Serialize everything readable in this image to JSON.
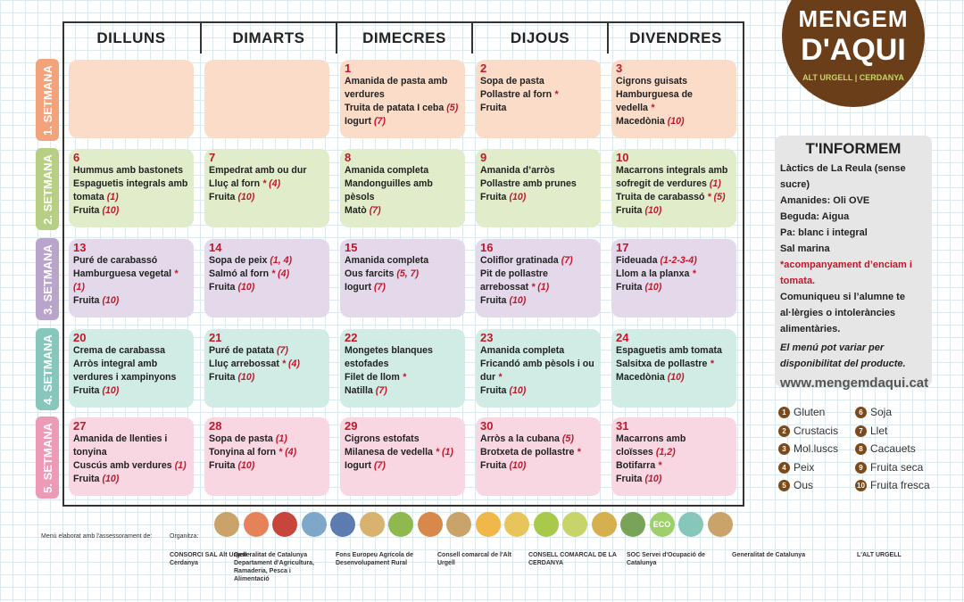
{
  "days": [
    "DILLUNS",
    "DIMARTS",
    "DIMECRES",
    "DIJOUS",
    "DIVENDRES"
  ],
  "weeks": [
    "1. SETMANA",
    "2. SETMANA",
    "3. SETMANA",
    "4. SETMANA",
    "5. SETMANA"
  ],
  "cells": [
    [
      null,
      null,
      {
        "date": 1,
        "items": [
          {
            "text": "Amanida de pasta amb verdures"
          },
          {
            "text": "Truita de patata I ceba",
            "note": "(5)"
          },
          {
            "text": "Iogurt",
            "note": "(7)"
          }
        ]
      },
      {
        "date": 2,
        "items": [
          {
            "text": "Sopa de pasta"
          },
          {
            "text": "Pollastre al forn",
            "note": "*"
          },
          {
            "text": "Fruita"
          }
        ]
      },
      {
        "date": 3,
        "items": [
          {
            "text": "Cigrons guisats"
          },
          {
            "text": "Hamburguesa de vedella",
            "note": "*"
          },
          {
            "text": "Macedònia",
            "note": "(10)"
          }
        ]
      }
    ],
    [
      {
        "date": 6,
        "items": [
          {
            "text": "Hummus amb bastonets"
          },
          {
            "text": "Espaguetis integrals amb tomata",
            "note": "(1)"
          },
          {
            "text": "Fruita",
            "note": "(10)"
          }
        ]
      },
      {
        "date": 7,
        "items": [
          {
            "text": "Empedrat amb ou dur"
          },
          {
            "text": "Lluç al forn",
            "note": "* (4)"
          },
          {
            "text": "Fruita",
            "note": "(10)"
          }
        ]
      },
      {
        "date": 8,
        "items": [
          {
            "text": "Amanida completa"
          },
          {
            "text": "Mandonguilles amb pèsols"
          },
          {
            "text": "Matò",
            "note": "(7)"
          }
        ]
      },
      {
        "date": 9,
        "items": [
          {
            "text": "Amanida d’arròs"
          },
          {
            "text": "Pollastre amb prunes"
          },
          {
            "text": "Fruita",
            "note": "(10)"
          }
        ]
      },
      {
        "date": 10,
        "items": [
          {
            "text": "Macarrons integrals amb sofregit de verdures",
            "note": "(1)"
          },
          {
            "text": "Truita de carabassó",
            "note": "* (5)"
          },
          {
            "text": "Fruita",
            "note": "(10)"
          }
        ]
      }
    ],
    [
      {
        "date": 13,
        "items": [
          {
            "text": "Puré de carabassó"
          },
          {
            "text": "Hamburguesa vegetal",
            "note": "* (1)"
          },
          {
            "text": "Fruita",
            "note": "(10)"
          }
        ]
      },
      {
        "date": 14,
        "items": [
          {
            "text": "Sopa de peix",
            "note": "(1, 4)"
          },
          {
            "text": "Salmó al forn",
            "note": "* (4)"
          },
          {
            "text": "Fruita",
            "note": "(10)"
          }
        ]
      },
      {
        "date": 15,
        "items": [
          {
            "text": "Amanida completa"
          },
          {
            "text": "Ous farcits",
            "note": "(5, 7)"
          },
          {
            "text": "Iogurt",
            "note": "(7)"
          }
        ]
      },
      {
        "date": 16,
        "items": [
          {
            "text": "Coliflor gratinada",
            "note": "(7)"
          },
          {
            "text": "Pit de pollastre arrebossat",
            "note": "* (1)"
          },
          {
            "text": "Fruita",
            "note": "(10)"
          }
        ]
      },
      {
        "date": 17,
        "items": [
          {
            "text": "Fideuada",
            "note": "(1-2-3-4)"
          },
          {
            "text": "Llom a la planxa",
            "note": "*"
          },
          {
            "text": "Fruita",
            "note": "(10)"
          }
        ]
      }
    ],
    [
      {
        "date": 20,
        "items": [
          {
            "text": "Crema de carabassa"
          },
          {
            "text": "Arròs integral amb verdures i xampinyons"
          },
          {
            "text": "Fruita",
            "note": "(10)"
          }
        ]
      },
      {
        "date": 21,
        "items": [
          {
            "text": "Puré de patata",
            "note": "(7)"
          },
          {
            "text": "Lluç arrebossat",
            "note": "* (4)"
          },
          {
            "text": "Fruita",
            "note": "(10)"
          }
        ]
      },
      {
        "date": 22,
        "items": [
          {
            "text": "Mongetes blanques estofades"
          },
          {
            "text": "Filet de llom",
            "note": "*"
          },
          {
            "text": "Natilla",
            "note": "(7)"
          }
        ]
      },
      {
        "date": 23,
        "items": [
          {
            "text": "Amanida completa"
          },
          {
            "text": "Fricandó amb pèsols i ou dur",
            "note": "*"
          },
          {
            "text": "Fruita",
            "note": "(10)"
          }
        ]
      },
      {
        "date": 24,
        "items": [
          {
            "text": "Espaguetis amb tomata"
          },
          {
            "text": "Salsitxa de pollastre",
            "note": "*"
          },
          {
            "text": "Macedònia",
            "note": "(10)"
          }
        ]
      }
    ],
    [
      {
        "date": 27,
        "items": [
          {
            "text": "Amanida de llenties i tonyina"
          },
          {
            "text": "Cuscús amb verdures",
            "note": "(1)"
          },
          {
            "text": "Fruita",
            "note": "(10)"
          }
        ]
      },
      {
        "date": 28,
        "items": [
          {
            "text": "Sopa de pasta",
            "note": "(1)"
          },
          {
            "text": "Tonyina al forn",
            "note": "* (4)"
          },
          {
            "text": "Fruita",
            "note": "(10)"
          }
        ]
      },
      {
        "date": 29,
        "items": [
          {
            "text": "Cigrons estofats"
          },
          {
            "text": "Milanesa de vedella",
            "note": "* (1)"
          },
          {
            "text": "Iogurt",
            "note": "(7)"
          }
        ]
      },
      {
        "date": 30,
        "items": [
          {
            "text": "Arròs a la cubana",
            "note": "(5)"
          },
          {
            "text": "Brotxeta de pollastre",
            "note": "*"
          },
          {
            "text": "Fruita",
            "note": "(10)"
          }
        ]
      },
      {
        "date": 31,
        "items": [
          {
            "text": "Macarrons amb cloïsses",
            "note": "(1,2)"
          },
          {
            "text": "Botifarra",
            "note": "*"
          },
          {
            "text": "Fruita",
            "note": "(10)"
          }
        ]
      }
    ]
  ],
  "logo": {
    "line1": "MENGEM",
    "line2": "D'AQUI",
    "sub": "ALT URGELL | CERDANYA"
  },
  "info": {
    "title": "T'INFORMEM",
    "lines": [
      "Làctics de La Reula (sense sucre)",
      "Amanides: Oli OVE",
      "Beguda: Aigua",
      "Pa: blanc i integral",
      "Sal marina"
    ],
    "note": "*acompanyament d’enciam i tomata.",
    "warning": "Comuniqueu si l’alumne te al·lèrgies o intoleràncies alimentàries.",
    "disclaimer": "El menú pot variar per disponibilitat del producte.",
    "web": "www.mengemdaqui.cat"
  },
  "allergens": [
    {
      "number": 1,
      "label": "Gluten"
    },
    {
      "number": 2,
      "label": "Crustacis"
    },
    {
      "number": 3,
      "label": "Mol.luscs"
    },
    {
      "number": 4,
      "label": "Peix"
    },
    {
      "number": 5,
      "label": "Ous"
    },
    {
      "number": 6,
      "label": "Soja"
    },
    {
      "number": 7,
      "label": "Llet"
    },
    {
      "number": 8,
      "label": "Cacauets"
    },
    {
      "number": 9,
      "label": "Fruita seca"
    },
    {
      "number": 10,
      "label": "Fruita fresca"
    }
  ],
  "eco": "ECO",
  "footer": {
    "advice": "Menú elaborat amb l'assessorament de:",
    "organizer": "Organitza:",
    "partners": [
      "CONSORCI SAL Alt Urgell · Cerdanya",
      "Generalitat de Catalunya Departament d'Agricultura, Ramaderia, Pesca i Alimentació",
      "Fons Europeu Agrícola de Desenvolupament Rural",
      "Consell comarcal de l'Alt Urgell",
      "CONSELL COMARCAL DE LA CERDANYA",
      "SOC Servei d'Ocupació de Catalunya",
      "Generalitat de Catalunya",
      "L'ALT URGELL"
    ]
  }
}
